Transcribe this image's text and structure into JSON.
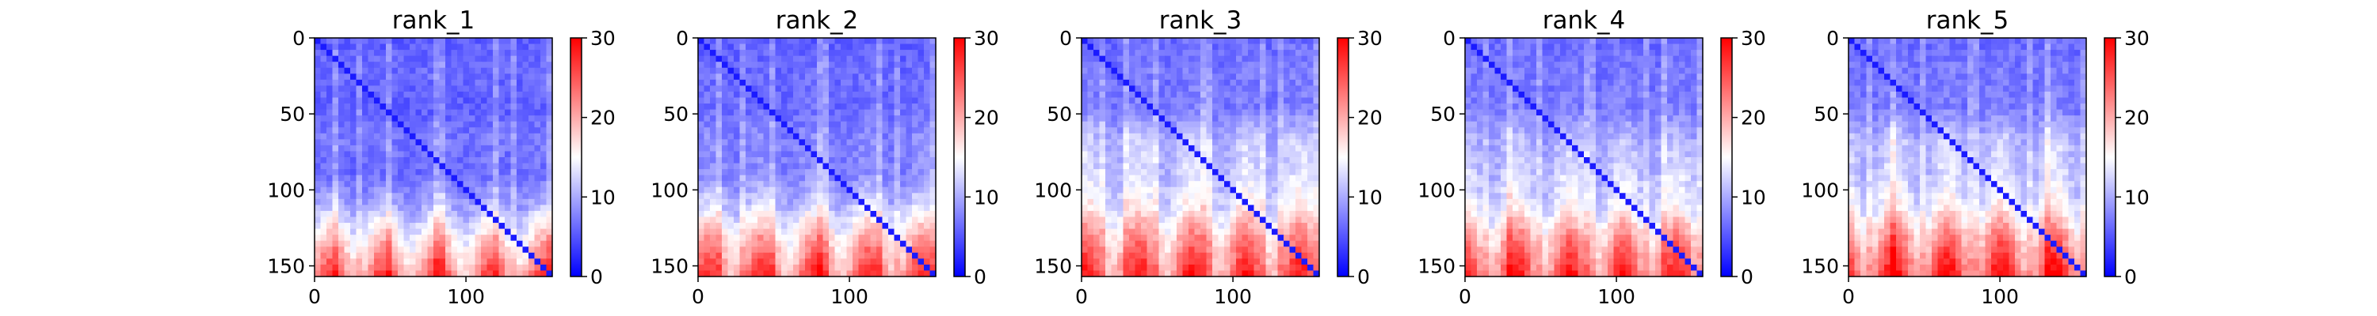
{
  "chart_data": {
    "type": "heatmap",
    "colormap": [
      "#0000ff",
      "#ffffff",
      "#ff0000"
    ],
    "colorbar": {
      "range": [
        0,
        30
      ],
      "ticks": [
        0,
        10,
        20,
        30
      ]
    },
    "axis_range": [
      0,
      157
    ],
    "x_ticks": [
      0,
      100
    ],
    "y_ticks": [
      0,
      50,
      100,
      150
    ],
    "grid": false,
    "panels": [
      {
        "title": "rank_1",
        "band_levels": [
          6,
          7,
          6,
          8,
          7,
          12,
          20,
          27
        ]
      },
      {
        "title": "rank_2",
        "band_levels": [
          6,
          7,
          7,
          9,
          9,
          14,
          22,
          28
        ]
      },
      {
        "title": "rank_3",
        "band_levels": [
          7,
          8,
          8,
          13,
          14,
          17,
          24,
          29
        ]
      },
      {
        "title": "rank_4",
        "band_levels": [
          7,
          8,
          8,
          12,
          14,
          16,
          24,
          29
        ]
      },
      {
        "title": "rank_5",
        "band_levels": [
          7,
          8,
          8,
          13,
          14,
          17,
          25,
          30
        ]
      }
    ]
  }
}
